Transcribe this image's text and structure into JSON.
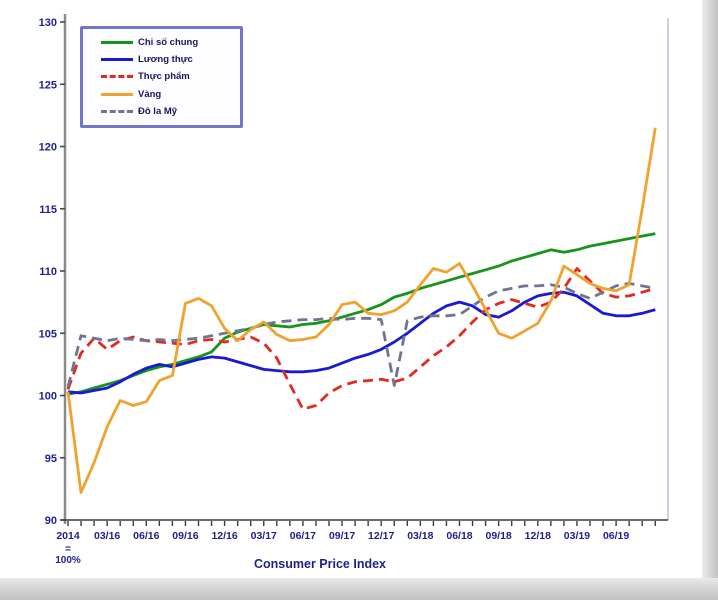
{
  "page": {
    "background": "#ffffff",
    "edge_color": "#c2c2c2"
  },
  "title": {
    "text": "Consumer Price Index"
  },
  "base_note": {
    "line1": "=",
    "line2": "100%"
  },
  "axis_style": {
    "label_color": "#1f1f8f",
    "axis_color": "#8a8a8a",
    "x_axis_color": "#3a3a3a",
    "plot_right_border_color": "#b9bfd2"
  },
  "legend": {
    "border_color": "#7376cd",
    "items": [
      {
        "key": "overall-cpi",
        "label": "Chỉ số chung",
        "color": "#17941c",
        "dash": "solid"
      },
      {
        "key": "food-grains",
        "label": "Lương thực",
        "color": "#1a1ad2",
        "dash": "solid"
      },
      {
        "key": "foodstuff",
        "label": "Thực phẩm",
        "color": "#e02b20",
        "dash": "dashed"
      },
      {
        "key": "gold",
        "label": "Vàng",
        "color": "#efa32e",
        "dash": "solid"
      },
      {
        "key": "usd",
        "label": "Đô la Mỹ",
        "color": "#6f7590",
        "dash": "dashed"
      }
    ]
  },
  "chart_data": {
    "type": "line",
    "title": "Consumer Price Index",
    "x_note": "2014 = 100%",
    "x_tick_labels": [
      "2014",
      "03/16",
      "06/16",
      "09/16",
      "12/16",
      "03/17",
      "06/17",
      "09/17",
      "12/17",
      "03/18",
      "06/18",
      "09/18",
      "12/18",
      "03/19",
      "06/19"
    ],
    "x_label_every_n_points": 3,
    "n_points": 46,
    "y_ticks": [
      90,
      95,
      100,
      105,
      110,
      115,
      120,
      125,
      130
    ],
    "ylim": [
      90,
      130
    ],
    "grid": false,
    "legend_position": "top-left",
    "series": [
      {
        "key": "overall-cpi",
        "name": "Chỉ số chung",
        "color": "#17941c",
        "dash": "solid",
        "values": [
          100.1,
          100.3,
          100.6,
          100.9,
          101.2,
          101.6,
          102.0,
          102.3,
          102.5,
          102.8,
          103.1,
          103.5,
          104.6,
          105.1,
          105.4,
          105.7,
          105.6,
          105.5,
          105.7,
          105.8,
          106.0,
          106.3,
          106.6,
          106.9,
          107.3,
          107.9,
          108.2,
          108.6,
          108.9,
          109.2,
          109.5,
          109.8,
          110.1,
          110.4,
          110.8,
          111.1,
          111.4,
          111.7,
          111.5,
          111.7,
          112.0,
          112.2,
          112.4,
          112.6,
          112.8,
          113.0
        ]
      },
      {
        "key": "food-grains",
        "name": "Lương thực",
        "color": "#1a1ad2",
        "dash": "solid",
        "values": [
          100.3,
          100.2,
          100.4,
          100.6,
          101.1,
          101.7,
          102.2,
          102.5,
          102.3,
          102.6,
          102.9,
          103.1,
          103.0,
          102.7,
          102.4,
          102.1,
          102.0,
          101.9,
          101.9,
          102.0,
          102.2,
          102.6,
          103.0,
          103.3,
          103.7,
          104.3,
          105.0,
          105.8,
          106.6,
          107.2,
          107.5,
          107.2,
          106.5,
          106.3,
          106.8,
          107.5,
          108.0,
          108.2,
          108.3,
          108.0,
          107.3,
          106.6,
          106.4,
          106.4,
          106.6,
          106.9
        ]
      },
      {
        "key": "foodstuff",
        "name": "Thực phẩm",
        "color": "#e02b20",
        "dash": "dashed",
        "values": [
          100.5,
          103.4,
          104.6,
          103.7,
          104.4,
          104.7,
          104.4,
          104.3,
          104.2,
          104.1,
          104.4,
          104.5,
          104.3,
          104.5,
          104.7,
          104.2,
          103.0,
          100.9,
          98.9,
          99.2,
          100.2,
          100.8,
          101.1,
          101.2,
          101.3,
          101.1,
          101.4,
          102.3,
          103.2,
          103.9,
          104.8,
          105.9,
          106.9,
          107.4,
          107.7,
          107.4,
          107.1,
          107.5,
          108.6,
          110.2,
          109.2,
          108.2,
          107.9,
          108.0,
          108.3,
          108.6
        ]
      },
      {
        "key": "usd",
        "name": "Đô la Mỹ",
        "color": "#6f7590",
        "dash": "dashed",
        "values": [
          100.7,
          104.8,
          104.6,
          104.4,
          104.6,
          104.5,
          104.4,
          104.5,
          104.4,
          104.5,
          104.6,
          104.8,
          105.0,
          105.2,
          105.4,
          105.7,
          105.9,
          106.0,
          106.1,
          106.1,
          106.2,
          106.1,
          106.2,
          106.2,
          106.1,
          100.8,
          106.0,
          106.3,
          106.4,
          106.4,
          106.5,
          107.2,
          107.9,
          108.4,
          108.6,
          108.8,
          108.8,
          108.9,
          108.7,
          108.2,
          107.8,
          108.3,
          108.8,
          109.0,
          108.8,
          108.6
        ]
      },
      {
        "key": "gold",
        "name": "Vàng",
        "color": "#efa32e",
        "dash": "solid",
        "values": [
          100.3,
          92.2,
          94.6,
          97.5,
          99.6,
          99.2,
          99.5,
          101.2,
          101.6,
          107.4,
          107.8,
          107.2,
          105.4,
          104.4,
          105.3,
          105.9,
          104.9,
          104.4,
          104.5,
          104.7,
          105.7,
          107.3,
          107.5,
          106.6,
          106.5,
          106.8,
          107.5,
          108.9,
          110.2,
          109.9,
          110.6,
          108.8,
          106.9,
          105.0,
          104.6,
          105.2,
          105.8,
          107.6,
          110.4,
          109.7,
          109.0,
          108.6,
          108.4,
          108.9,
          115.0,
          121.5
        ]
      }
    ]
  }
}
